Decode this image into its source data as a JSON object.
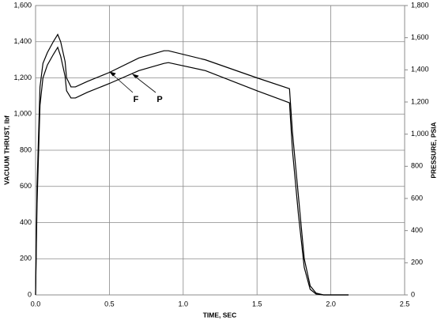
{
  "chart_data": {
    "type": "line",
    "xlabel": "TIME, SEC",
    "ylabel": "VACUUM THRUST, lbf",
    "y2label": "PRESSURE, PSIA",
    "annotations": [
      "F",
      "P"
    ],
    "x": [
      0,
      0.01,
      0.03,
      0.05,
      0.08,
      0.12,
      0.15,
      0.17,
      0.2,
      0.21,
      0.24,
      0.27,
      0.35,
      0.5,
      0.7,
      0.87,
      0.9,
      1.15,
      1.5,
      1.72,
      1.74,
      1.78,
      1.82,
      1.86,
      1.9,
      1.95,
      2.0,
      2.12
    ],
    "series": [
      {
        "name": "F",
        "color": "#000000",
        "values": [
          0,
          600,
          1150,
          1280,
          1340,
          1400,
          1440,
          1400,
          1290,
          1200,
          1150,
          1150,
          1180,
          1230,
          1310,
          1350,
          1350,
          1300,
          1200,
          1140,
          900,
          550,
          200,
          50,
          10,
          0,
          0,
          0
        ]
      },
      {
        "name": "P",
        "color": "#000000",
        "axis": "y2",
        "values": [
          0,
          565,
          1180,
          1350,
          1430,
          1495,
          1540,
          1485,
          1360,
          1270,
          1225,
          1225,
          1260,
          1315,
          1395,
          1440,
          1445,
          1395,
          1270,
          1195,
          900,
          505,
          170,
          35,
          5,
          0,
          0,
          0
        ]
      }
    ],
    "xlim": [
      0,
      2.5
    ],
    "xticks": [
      {
        "value": 0,
        "label": "0.0"
      },
      0.5,
      {
        "value": 1,
        "label": "1.0"
      },
      1.5,
      {
        "value": 2,
        "label": "2.0"
      },
      2.5
    ],
    "ylim": [
      0,
      1600
    ],
    "yticks": [
      0,
      200,
      400,
      600,
      800,
      {
        "value": 1000,
        "label": "1,000"
      },
      {
        "value": 1200,
        "label": "1,200"
      },
      {
        "value": 1400,
        "label": "1,400"
      },
      {
        "value": 1600,
        "label": "1,600"
      }
    ],
    "y2lim": [
      0,
      1800
    ],
    "y2ticks": [
      0,
      200,
      400,
      600,
      800,
      {
        "value": 1000,
        "label": "1,000"
      },
      {
        "value": 1200,
        "label": "1,200"
      },
      {
        "value": 1400,
        "label": "1,400"
      },
      {
        "value": 1600,
        "label": "1,600"
      },
      {
        "value": 1800,
        "label": "1,800"
      }
    ],
    "grid": true
  }
}
